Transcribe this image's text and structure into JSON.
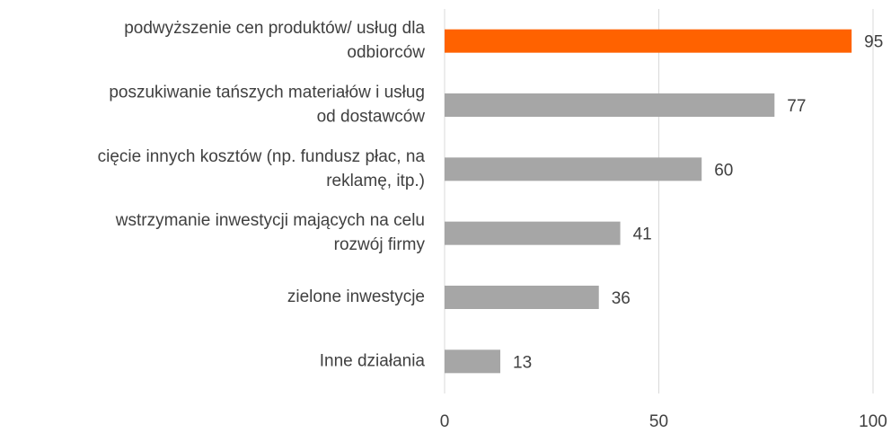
{
  "chart_data": {
    "type": "barh",
    "categories": [
      [
        "podwyższenie cen produktów/ usług dla",
        "odbiorców"
      ],
      [
        "poszukiwanie tańszych materiałów i usług",
        "od dostawców"
      ],
      [
        "cięcie innych kosztów (np. fundusz płac, na",
        "reklamę, itp.)"
      ],
      [
        "wstrzymanie inwestycji mających na celu",
        "rozwój firmy"
      ],
      [
        "zielone inwestycje"
      ],
      [
        "Inne działania"
      ]
    ],
    "values": [
      95,
      77,
      60,
      41,
      36,
      13
    ],
    "colors": [
      "#ff6200",
      "#a6a6a6",
      "#a6a6a6",
      "#a6a6a6",
      "#a6a6a6",
      "#a6a6a6"
    ],
    "xlim": [
      0,
      100
    ],
    "xticks": [
      0,
      50,
      100
    ],
    "grid": true
  }
}
